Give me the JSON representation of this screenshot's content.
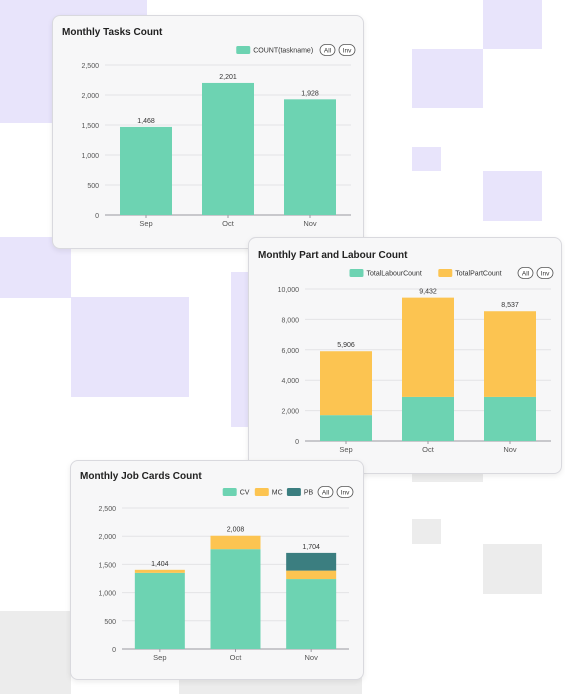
{
  "colors": {
    "teal": "#6dd3b2",
    "yellow": "#fcc451",
    "dark_teal": "#3b7e80",
    "lavender": "#e8e4fb",
    "light_gray": "#ececec"
  },
  "controls": {
    "all_label": "All",
    "inv_label": "Inv"
  },
  "chart_data": [
    {
      "type": "bar",
      "title": "Monthly Tasks Count",
      "categories": [
        "Sep",
        "Oct",
        "Nov"
      ],
      "series": [
        {
          "name": "COUNT(taskname)",
          "values": [
            1468,
            2201,
            1928
          ],
          "color": "#6dd3b2"
        }
      ],
      "totals": [
        "1,468",
        "2,201",
        "1,928"
      ],
      "ylim": [
        0,
        2500
      ],
      "yticks": [
        0,
        500,
        1000,
        1500,
        2000,
        2500
      ],
      "ytick_labels": [
        "0",
        "500",
        "1,000",
        "1,500",
        "2,000",
        "2,500"
      ],
      "grid": true,
      "legend_position": "top-right"
    },
    {
      "type": "bar",
      "stacked": true,
      "title": "Monthly Part and Labour Count",
      "categories": [
        "Sep",
        "Oct",
        "Nov"
      ],
      "series": [
        {
          "name": "TotalLabourCount",
          "values": [
            1700,
            2900,
            2900
          ],
          "color": "#6dd3b2"
        },
        {
          "name": "TotalPartCount",
          "values": [
            4206,
            6532,
            5637
          ],
          "color": "#fcc451"
        }
      ],
      "totals": [
        "5,906",
        "9,432",
        "8,537"
      ],
      "ylim": [
        0,
        10000
      ],
      "yticks": [
        0,
        2000,
        4000,
        6000,
        8000,
        10000
      ],
      "ytick_labels": [
        "0",
        "2,000",
        "4,000",
        "6,000",
        "8,000",
        "10,000"
      ],
      "grid": true,
      "legend_position": "top-right"
    },
    {
      "type": "bar",
      "stacked": true,
      "title": "Monthly Job Cards Count",
      "categories": [
        "Sep",
        "Oct",
        "Nov"
      ],
      "series": [
        {
          "name": "CV",
          "values": [
            1350,
            1770,
            1240
          ],
          "color": "#6dd3b2"
        },
        {
          "name": "MC",
          "values": [
            54,
            238,
            150
          ],
          "color": "#fcc451"
        },
        {
          "name": "PB",
          "values": [
            0,
            0,
            314
          ],
          "color": "#3b7e80"
        }
      ],
      "totals": [
        "1,404",
        "2,008",
        "1,704"
      ],
      "ylim": [
        0,
        2500
      ],
      "yticks": [
        0,
        500,
        1000,
        1500,
        2000,
        2500
      ],
      "ytick_labels": [
        "0",
        "500",
        "1,000",
        "1,500",
        "2,000",
        "2,500"
      ],
      "grid": true,
      "legend_position": "top-right"
    }
  ]
}
